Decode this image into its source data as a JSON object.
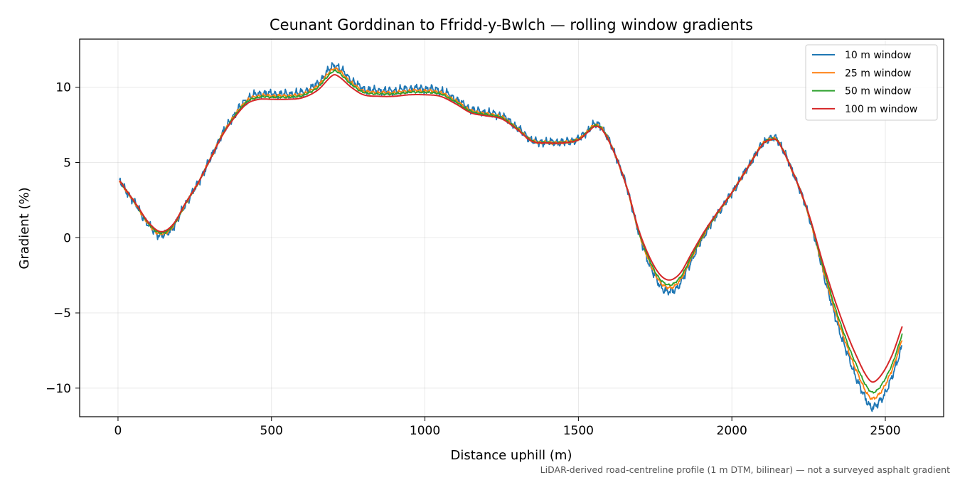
{
  "chart_data": {
    "type": "line",
    "title": "Ceunant Gorddinan to Ffridd-y-Bwlch — rolling window gradients",
    "xlabel": "Distance uphill (m)",
    "ylabel": "Gradient (%)",
    "footnote": "LiDAR-derived road-centreline profile (1 m DTM, bilinear) — not a surveyed asphalt gradient",
    "xlim": [
      -125,
      2690
    ],
    "ylim": [
      -11.9,
      13.2
    ],
    "x_ticks": [
      0,
      500,
      1000,
      1500,
      2000,
      2500
    ],
    "x_tick_labels": [
      "0",
      "500",
      "1000",
      "1500",
      "2000",
      "2500"
    ],
    "y_ticks": [
      -10,
      -5,
      0,
      5,
      10
    ],
    "y_tick_labels": [
      "−10",
      "−5",
      "0",
      "5",
      "10"
    ],
    "grid": true,
    "legend_position": "top-right",
    "x_range": [
      5,
      2555
    ],
    "profile": {
      "x": [
        5,
        25,
        60,
        100,
        140,
        180,
        220,
        260,
        300,
        340,
        380,
        420,
        460,
        500,
        550,
        600,
        650,
        700,
        720,
        760,
        800,
        850,
        900,
        950,
        1000,
        1050,
        1100,
        1150,
        1200,
        1250,
        1300,
        1350,
        1400,
        1450,
        1500,
        1530,
        1555,
        1580,
        1620,
        1660,
        1700,
        1750,
        1790,
        1830,
        1870,
        1910,
        1950,
        2000,
        2050,
        2100,
        2125,
        2150,
        2200,
        2250,
        2300,
        2350,
        2400,
        2450,
        2480,
        2520,
        2555
      ],
      "y": [
        3.8,
        3.2,
        2.2,
        1.0,
        0.4,
        0.9,
        2.3,
        3.6,
        5.2,
        6.8,
        8.0,
        8.9,
        9.2,
        9.2,
        9.2,
        9.3,
        9.8,
        10.8,
        10.7,
        10.0,
        9.5,
        9.4,
        9.4,
        9.5,
        9.5,
        9.4,
        8.9,
        8.3,
        8.1,
        7.9,
        7.2,
        6.4,
        6.3,
        6.3,
        6.5,
        7.0,
        7.4,
        7.1,
        5.5,
        3.2,
        0.3,
        -2.0,
        -2.8,
        -2.4,
        -1.0,
        0.4,
        1.6,
        3.0,
        4.6,
        6.2,
        6.5,
        6.4,
        4.3,
        1.6,
        -1.9,
        -5.0,
        -7.6,
        -9.5,
        -9.3,
        -7.9,
        -5.9
      ]
    },
    "series": [
      {
        "name": "10 m window",
        "color": "#1f77b4",
        "noise": 0.32,
        "extremum_gain": 0.12
      },
      {
        "name": "25 m window",
        "color": "#ff7f0e",
        "noise": 0.12,
        "extremum_gain": 0.08
      },
      {
        "name": "50 m window",
        "color": "#2ca02c",
        "noise": 0.07,
        "extremum_gain": 0.05
      },
      {
        "name": "100 m window",
        "color": "#d62728",
        "noise": 0.0,
        "extremum_gain": 0.0
      }
    ]
  }
}
